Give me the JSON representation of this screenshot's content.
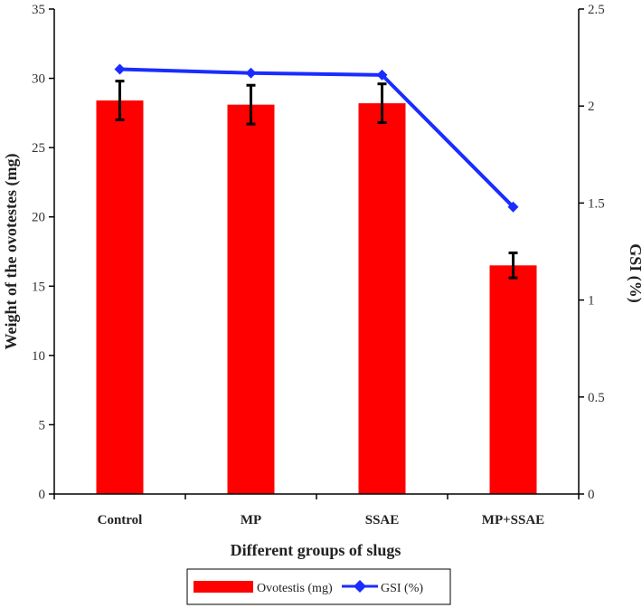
{
  "chart_data": {
    "type": "bar",
    "categories": [
      "Control",
      "MP",
      "SSAE",
      "MP+SSAE"
    ],
    "xlabel": "Different groups of slugs",
    "ylabel": "Weight  of the ovotestes (mg)",
    "y2label": "GSI (%)",
    "ylim": [
      0,
      35
    ],
    "y2lim": [
      0,
      2.5
    ],
    "yticks": [
      "0",
      "5",
      "10",
      "15",
      "20",
      "25",
      "30",
      "35"
    ],
    "y2ticks": [
      "0",
      "0.5",
      "1",
      "1.5",
      "2",
      "2.5"
    ],
    "series": [
      {
        "name": "Ovotestis (mg)",
        "type": "bar",
        "axis": "left",
        "values": [
          28.4,
          28.1,
          28.2,
          16.5
        ],
        "errors": [
          1.4,
          1.4,
          1.4,
          0.9
        ],
        "color": "#ff0000"
      },
      {
        "name": "GSI (%)",
        "type": "line",
        "axis": "right",
        "values": [
          2.19,
          2.17,
          2.16,
          1.48
        ],
        "color": "#1a2cff"
      }
    ],
    "grid": false,
    "legend_position": "bottom"
  }
}
